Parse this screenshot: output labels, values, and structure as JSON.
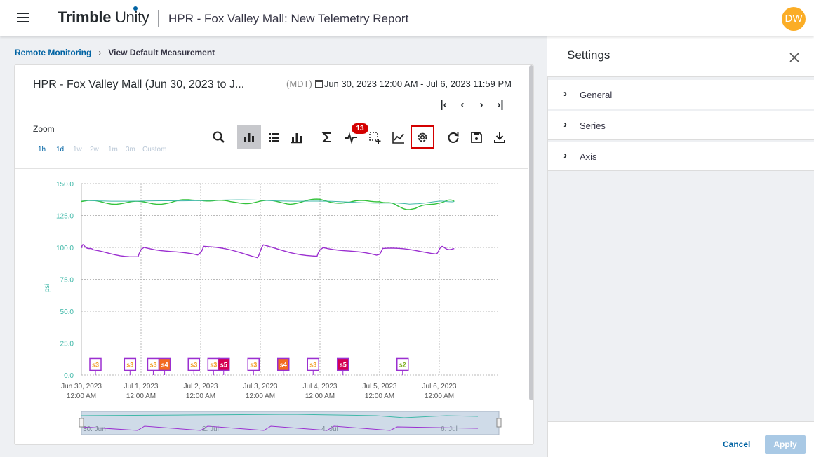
{
  "app": {
    "brand_bold": "Trimble",
    "brand_light": "Unity",
    "report_title": "HPR - Fox Valley Mall: New Telemetry Report",
    "user_initials": "DW",
    "accent": "#0063a3"
  },
  "breadcrumb": {
    "link": "Remote Monitoring",
    "current": "View Default Measurement"
  },
  "chart_panel": {
    "title": "HPR - Fox Valley Mall (Jun 30, 2023 to J...",
    "timezone": "(MDT)",
    "date_range": "Jun 30, 2023 12:00 AM - Jul 6, 2023 11:59 PM",
    "nav_icons": [
      "first-page-icon",
      "previous-icon",
      "next-icon",
      "last-page-icon"
    ],
    "zoom_label": "Zoom",
    "zoom_options": [
      "1h",
      "1d",
      "1w",
      "2w",
      "1m",
      "3m",
      "Custom"
    ],
    "active_zoom": [
      "1h",
      "1d"
    ],
    "tools": [
      "search-icon",
      "bar-chart-icon",
      "list-icon",
      "stacked-bar-icon",
      "sigma-icon",
      "pulse-icon",
      "selection-add-icon",
      "line-chart-icon",
      "gear-icon",
      "refresh-icon",
      "save-icon",
      "download-icon"
    ],
    "alert_count": "13"
  },
  "chart_data": {
    "type": "line",
    "ylabel": "psi",
    "ylim": [
      0,
      150
    ],
    "yticks": [
      "0.0",
      "25.0",
      "50.0",
      "75.0",
      "100.0",
      "125.0",
      "150.0"
    ],
    "xticks": [
      {
        "date": "Jun 30, 2023",
        "time": "12:00 AM"
      },
      {
        "date": "Jul 1, 2023",
        "time": "12:00 AM"
      },
      {
        "date": "Jul 2, 2023",
        "time": "12:00 AM"
      },
      {
        "date": "Jul 3, 2023",
        "time": "12:00 AM"
      },
      {
        "date": "Jul 4, 2023",
        "time": "12:00 AM"
      },
      {
        "date": "Jul 5, 2023",
        "time": "12:00 AM"
      },
      {
        "date": "Jul 6, 2023",
        "time": "12:00 AM"
      }
    ],
    "series": [
      {
        "color": "#33c23a",
        "x_days": [
          0,
          0.5,
          1,
          1.5,
          2,
          2.5,
          3,
          3.5,
          4,
          4.5,
          5,
          5.3,
          5.6,
          6,
          6.25
        ],
        "y": [
          136,
          135,
          135,
          135,
          138,
          135,
          136,
          135,
          137,
          135,
          137,
          132,
          130,
          136,
          136
        ]
      },
      {
        "color": "#3fb8a8",
        "x_days": [
          0,
          1,
          2,
          3,
          4,
          5,
          5.5,
          6,
          6.25
        ],
        "y": [
          137,
          136,
          137,
          137,
          136,
          135,
          134,
          136,
          136
        ]
      },
      {
        "color": "#9b2fd0",
        "x_days": [
          0,
          0.05,
          0.2,
          0.95,
          1.05,
          1.95,
          2.05,
          2.95,
          3.05,
          3.95,
          4.05,
          4.95,
          5.05,
          5.95,
          6.05,
          6.25
        ],
        "y": [
          100,
          102,
          97,
          93,
          101,
          93,
          101,
          93,
          101,
          93,
          101,
          93,
          99,
          96,
          100,
          99
        ]
      }
    ],
    "events": [
      {
        "label": "s3",
        "x_day": 0.0,
        "color": "#f29c1f",
        "style": "outline"
      },
      {
        "label": "s3",
        "x_day": 0.58,
        "color": "#f29c1f",
        "style": "outline"
      },
      {
        "label": "s3",
        "x_day": 0.97,
        "color": "#f29c1f",
        "style": "outline"
      },
      {
        "label": "s4",
        "x_day": 1.16,
        "color": "#f26b1f",
        "style": "filled"
      },
      {
        "label": "s3",
        "x_day": 1.65,
        "color": "#f29c1f",
        "style": "outline"
      },
      {
        "label": "s3",
        "x_day": 1.98,
        "color": "#f29c1f",
        "style": "outline"
      },
      {
        "label": "s5",
        "x_day": 2.15,
        "color": "#d40052",
        "style": "filled"
      },
      {
        "label": "s3",
        "x_day": 2.65,
        "color": "#f29c1f",
        "style": "outline"
      },
      {
        "label": "s4",
        "x_day": 3.15,
        "color": "#f26b1f",
        "style": "filled"
      },
      {
        "label": "s3",
        "x_day": 3.65,
        "color": "#f29c1f",
        "style": "outline"
      },
      {
        "label": "s5",
        "x_day": 4.15,
        "color": "#d40052",
        "style": "filled"
      },
      {
        "label": "s2",
        "x_day": 5.15,
        "color": "#7fae23",
        "style": "outline"
      }
    ],
    "navigator_labels": [
      "30. Jun",
      "2. Jul",
      "4. Jul",
      "6. Jul"
    ],
    "grid": true
  },
  "settings": {
    "title": "Settings",
    "sections": [
      "General",
      "Series",
      "Axis"
    ],
    "cancel_label": "Cancel",
    "apply_label": "Apply"
  }
}
